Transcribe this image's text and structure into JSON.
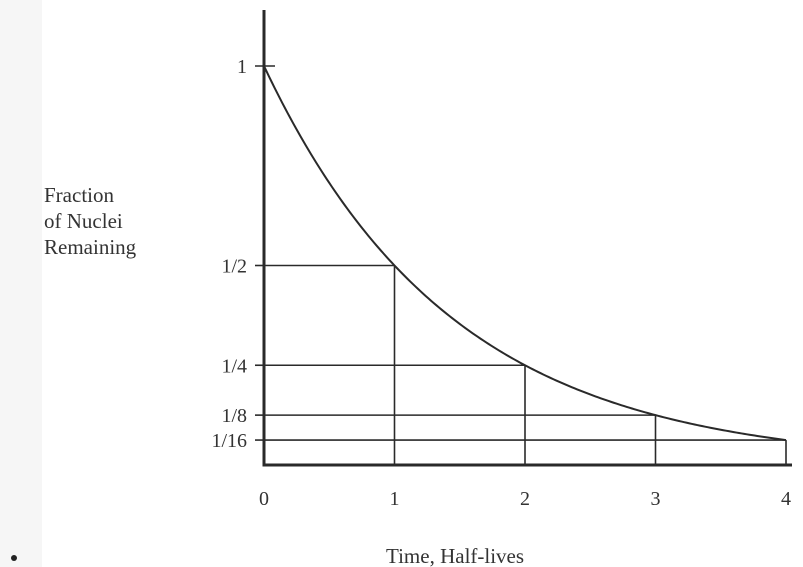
{
  "chart_data": {
    "type": "line",
    "title": "",
    "xlabel": "Time, Half-lives",
    "ylabel_lines": [
      "Fraction",
      "of Nuclei",
      "Remaining"
    ],
    "x_ticks": [
      {
        "value": 0,
        "label": "0"
      },
      {
        "value": 1,
        "label": "1"
      },
      {
        "value": 2,
        "label": "2"
      },
      {
        "value": 3,
        "label": "3"
      },
      {
        "value": 4,
        "label": "4"
      }
    ],
    "y_ticks": [
      {
        "value": 1,
        "label": "1"
      },
      {
        "value": 0.5,
        "label": "1/2"
      },
      {
        "value": 0.25,
        "label": "1/4"
      },
      {
        "value": 0.125,
        "label": "1/8"
      },
      {
        "value": 0.0625,
        "label": "1/16"
      }
    ],
    "series": [
      {
        "x": [
          0,
          1,
          2,
          3,
          4
        ],
        "y": [
          1,
          0.5,
          0.25,
          0.125,
          0.0625
        ]
      }
    ],
    "xlim": [
      0,
      4
    ],
    "ylim": [
      0,
      1
    ],
    "grid": false,
    "legend": "none",
    "colors": {
      "line": "#2a2a2a",
      "text": "#333333"
    }
  }
}
